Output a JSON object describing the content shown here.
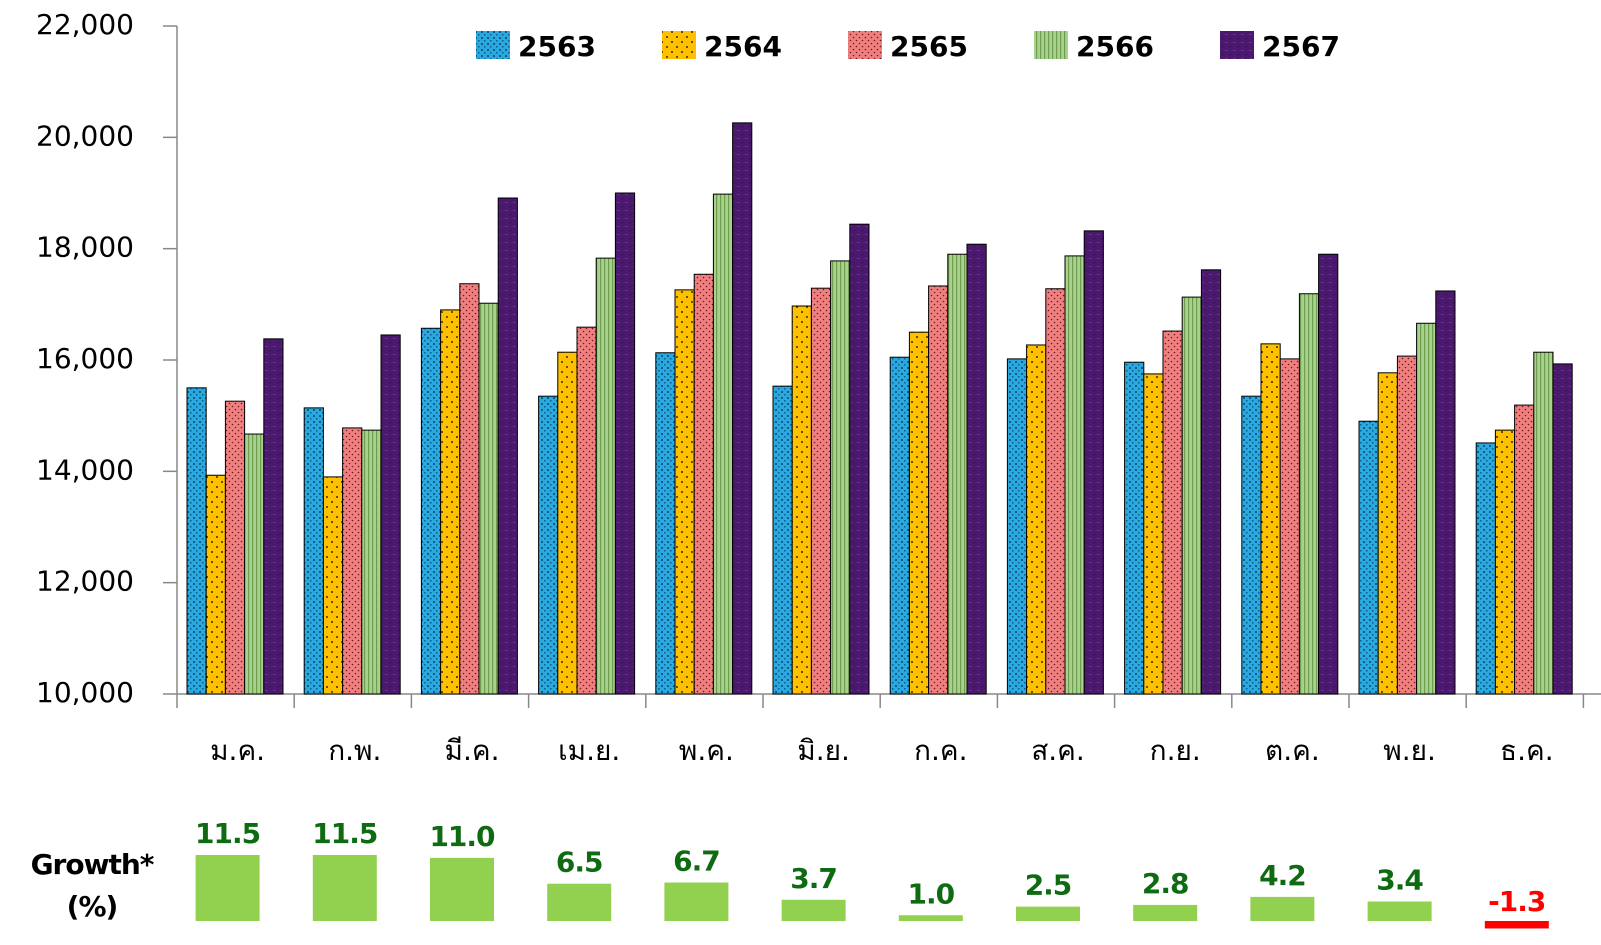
{
  "chart_data": {
    "type": "bar",
    "categories": [
      "ม.ค.",
      "ก.พ.",
      "มี.ค.",
      "เม.ย.",
      "พ.ค.",
      "มิ.ย.",
      "ก.ค.",
      "ส.ค.",
      "ก.ย.",
      "ต.ค.",
      "พ.ย.",
      "ธ.ค."
    ],
    "series": [
      {
        "name": "2563",
        "color": "#29a9e0",
        "values": [
          15500,
          15140,
          16570,
          15350,
          16130,
          15530,
          16050,
          16020,
          15960,
          15350,
          14900,
          14510
        ]
      },
      {
        "name": "2564",
        "color": "#ffc000",
        "values": [
          13930,
          13900,
          16900,
          16140,
          17260,
          16970,
          16500,
          16270,
          15750,
          16290,
          15770,
          14740
        ]
      },
      {
        "name": "2565",
        "color": "#f08080",
        "values": [
          15260,
          14780,
          17370,
          16590,
          17540,
          17290,
          17330,
          17280,
          16520,
          16020,
          16070,
          15190
        ]
      },
      {
        "name": "2566",
        "color": "#a9d18e",
        "values": [
          14670,
          14740,
          17020,
          17830,
          18980,
          17780,
          17900,
          17870,
          17130,
          17190,
          16660,
          16140
        ]
      },
      {
        "name": "2567",
        "color": "#4b1a6e",
        "values": [
          16380,
          16450,
          18910,
          19000,
          20260,
          18440,
          18080,
          18320,
          17620,
          17900,
          17240,
          15930
        ]
      }
    ],
    "ylim": [
      10000,
      22000
    ],
    "yticks": [
      {
        "value": 10000,
        "label": "10,000"
      },
      {
        "value": 12000,
        "label": "12,000"
      },
      {
        "value": 14000,
        "label": "14,000"
      },
      {
        "value": 16000,
        "label": "16,000"
      },
      {
        "value": 18000,
        "label": "18,000"
      },
      {
        "value": 20000,
        "label": "20,000"
      },
      {
        "value": 22000,
        "label": "22,000"
      }
    ],
    "growth": {
      "label": "Growth*",
      "unit": "(%)",
      "color": "#92d050",
      "label_color": "#0f6b12",
      "negative_color": "#ff0000",
      "values": [
        11.5,
        11.5,
        11.0,
        6.5,
        6.7,
        3.7,
        1.0,
        2.5,
        2.8,
        4.2,
        3.4,
        -1.3
      ],
      "value_labels": [
        "11.5",
        "11.5",
        "11.0",
        "6.5",
        "6.7",
        "3.7",
        "1.0",
        "2.5",
        "2.8",
        "4.2",
        "3.4",
        "-1.3"
      ]
    }
  }
}
